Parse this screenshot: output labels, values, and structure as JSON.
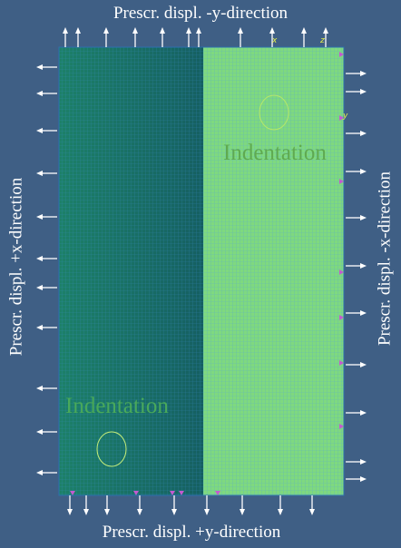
{
  "labels": {
    "top": "Prescr. displ. -y-direction",
    "bottom": "Prescr. displ. +y-direction",
    "left": "Prescr. displ. +x-direction",
    "right": "Prescr. displ. -x-direction"
  },
  "regions": {
    "right_indentation": "Indentation",
    "left_indentation": "Indentation"
  },
  "axes": {
    "x": "x",
    "z": "z",
    "y": "y"
  },
  "colors": {
    "background": "#3f5f85",
    "left_mesh": "#1e7a6a",
    "right_mesh": "#7fd97f",
    "mesh_line": "#3f8cff",
    "arrow": "#ffffff",
    "constraint": "#c45ad0",
    "indent_circle": "#c9f07a"
  }
}
